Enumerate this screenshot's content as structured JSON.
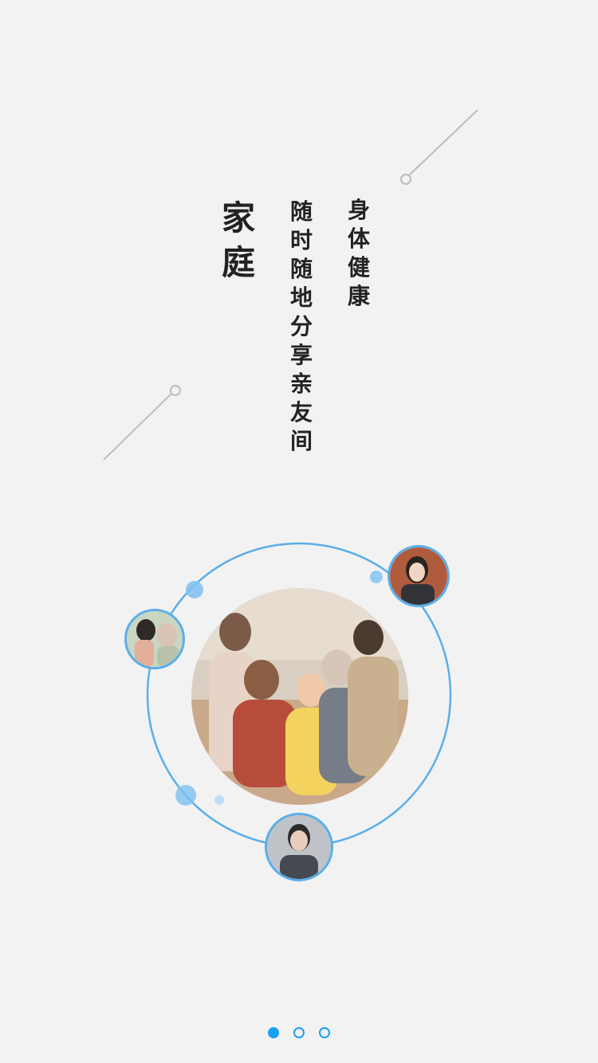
{
  "texts": {
    "title": "家\n庭",
    "slogan": "随\n时\n随\n地\n分\n享\n亲\n友\n间",
    "tagline": "身\n体\n健\n康"
  },
  "images": {
    "main_photo": "family-group-photo",
    "avatar_left": "elderly-man-with-child-photo",
    "avatar_top_right": "young-woman-photo",
    "avatar_bottom": "young-man-photo"
  },
  "pager": {
    "total": 3,
    "active_index": 0
  },
  "colors": {
    "background": "#f2f2f3",
    "accent": "#1aa0f0",
    "orbit": "#5aaeea",
    "text": "#222222",
    "line": "#bdbdbd"
  }
}
